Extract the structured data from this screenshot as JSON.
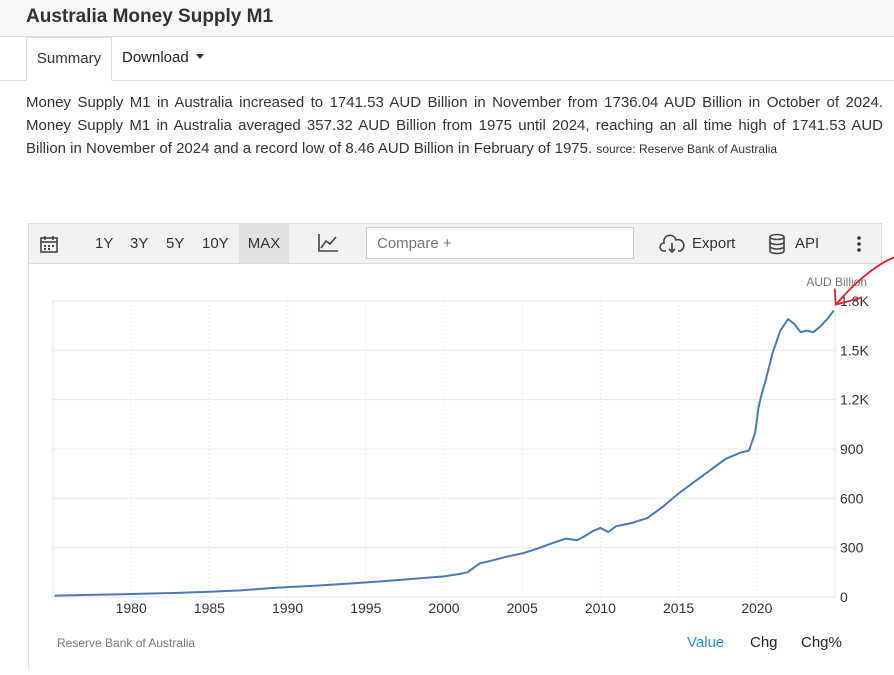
{
  "header": {
    "title": "Australia Money Supply M1"
  },
  "tabs": {
    "summary": "Summary",
    "download": "Download"
  },
  "summary": {
    "text": "Money Supply M1 in Australia increased to 1741.53 AUD Billion in November from 1736.04 AUD Billion in October of 2024. Money Supply M1 in Australia averaged 357.32 AUD Billion from 1975 until 2024, reaching an all time high of 1741.53 AUD Billion in November of 2024 and a record low of 8.46 AUD Billion in February of 1975.",
    "source": "source: Reserve Bank of Australia"
  },
  "toolbar": {
    "ranges": [
      "1Y",
      "3Y",
      "5Y",
      "10Y",
      "MAX"
    ],
    "active_range": "MAX",
    "compare_placeholder": "Compare +",
    "export_label": "Export",
    "api_label": "API",
    "icons": [
      "calendar-icon",
      "line-chart-icon",
      "cloud-download-icon",
      "database-icon",
      "more-vertical-icon"
    ]
  },
  "footer": {
    "source_label": "Reserve Bank of Australia",
    "views": [
      "Value",
      "Chg",
      "Chg%"
    ],
    "active_view": "Value"
  },
  "colors": {
    "line": "#4a7ab8",
    "accent": "#2a8fd6",
    "annotation": "#e0202a"
  },
  "chart_data": {
    "type": "line",
    "title": "",
    "xlabel": "",
    "ylabel": "AUD Billion",
    "xlim": [
      1975,
      2025.0
    ],
    "ylim": [
      0,
      1800
    ],
    "x_ticks": [
      1980,
      1985,
      1990,
      1995,
      2000,
      2005,
      2010,
      2015,
      2020
    ],
    "y_ticks": [
      {
        "value": 0,
        "label": "0"
      },
      {
        "value": 300,
        "label": "300"
      },
      {
        "value": 600,
        "label": "600"
      },
      {
        "value": 900,
        "label": "900"
      },
      {
        "value": 1200,
        "label": "1.2K"
      },
      {
        "value": 1500,
        "label": "1.5K"
      },
      {
        "value": 1800,
        "label": "1.8K"
      }
    ],
    "grid": true,
    "series": [
      {
        "x": [
          1975.1,
          1977,
          1980,
          1983,
          1985,
          1987,
          1989,
          1990,
          1992,
          1994,
          1996,
          1998,
          2000,
          2001,
          2001.5,
          2002,
          2002.3,
          2003,
          2004,
          2005,
          2006,
          2007,
          2007.8,
          2008.5,
          2009,
          2009.5,
          2010,
          2010.5,
          2011,
          2011.5,
          2012,
          2013,
          2014,
          2015,
          2016,
          2017,
          2018,
          2019,
          2019.5,
          2019.9,
          2020.1,
          2020.3,
          2020.6,
          2021,
          2021.5,
          2022,
          2022.4,
          2022.8,
          2023.2,
          2023.6,
          2024,
          2024.5,
          2024.92
        ],
        "y": [
          8.46,
          12,
          18,
          25,
          32,
          40,
          55,
          60,
          70,
          82,
          95,
          110,
          125,
          140,
          150,
          185,
          205,
          220,
          245,
          265,
          295,
          330,
          355,
          345,
          370,
          400,
          420,
          395,
          430,
          440,
          450,
          480,
          550,
          630,
          700,
          770,
          840,
          880,
          890,
          1000,
          1150,
          1230,
          1330,
          1480,
          1620,
          1690,
          1660,
          1610,
          1620,
          1610,
          1640,
          1690,
          1741.53
        ]
      }
    ],
    "last_value": 1741.53
  }
}
